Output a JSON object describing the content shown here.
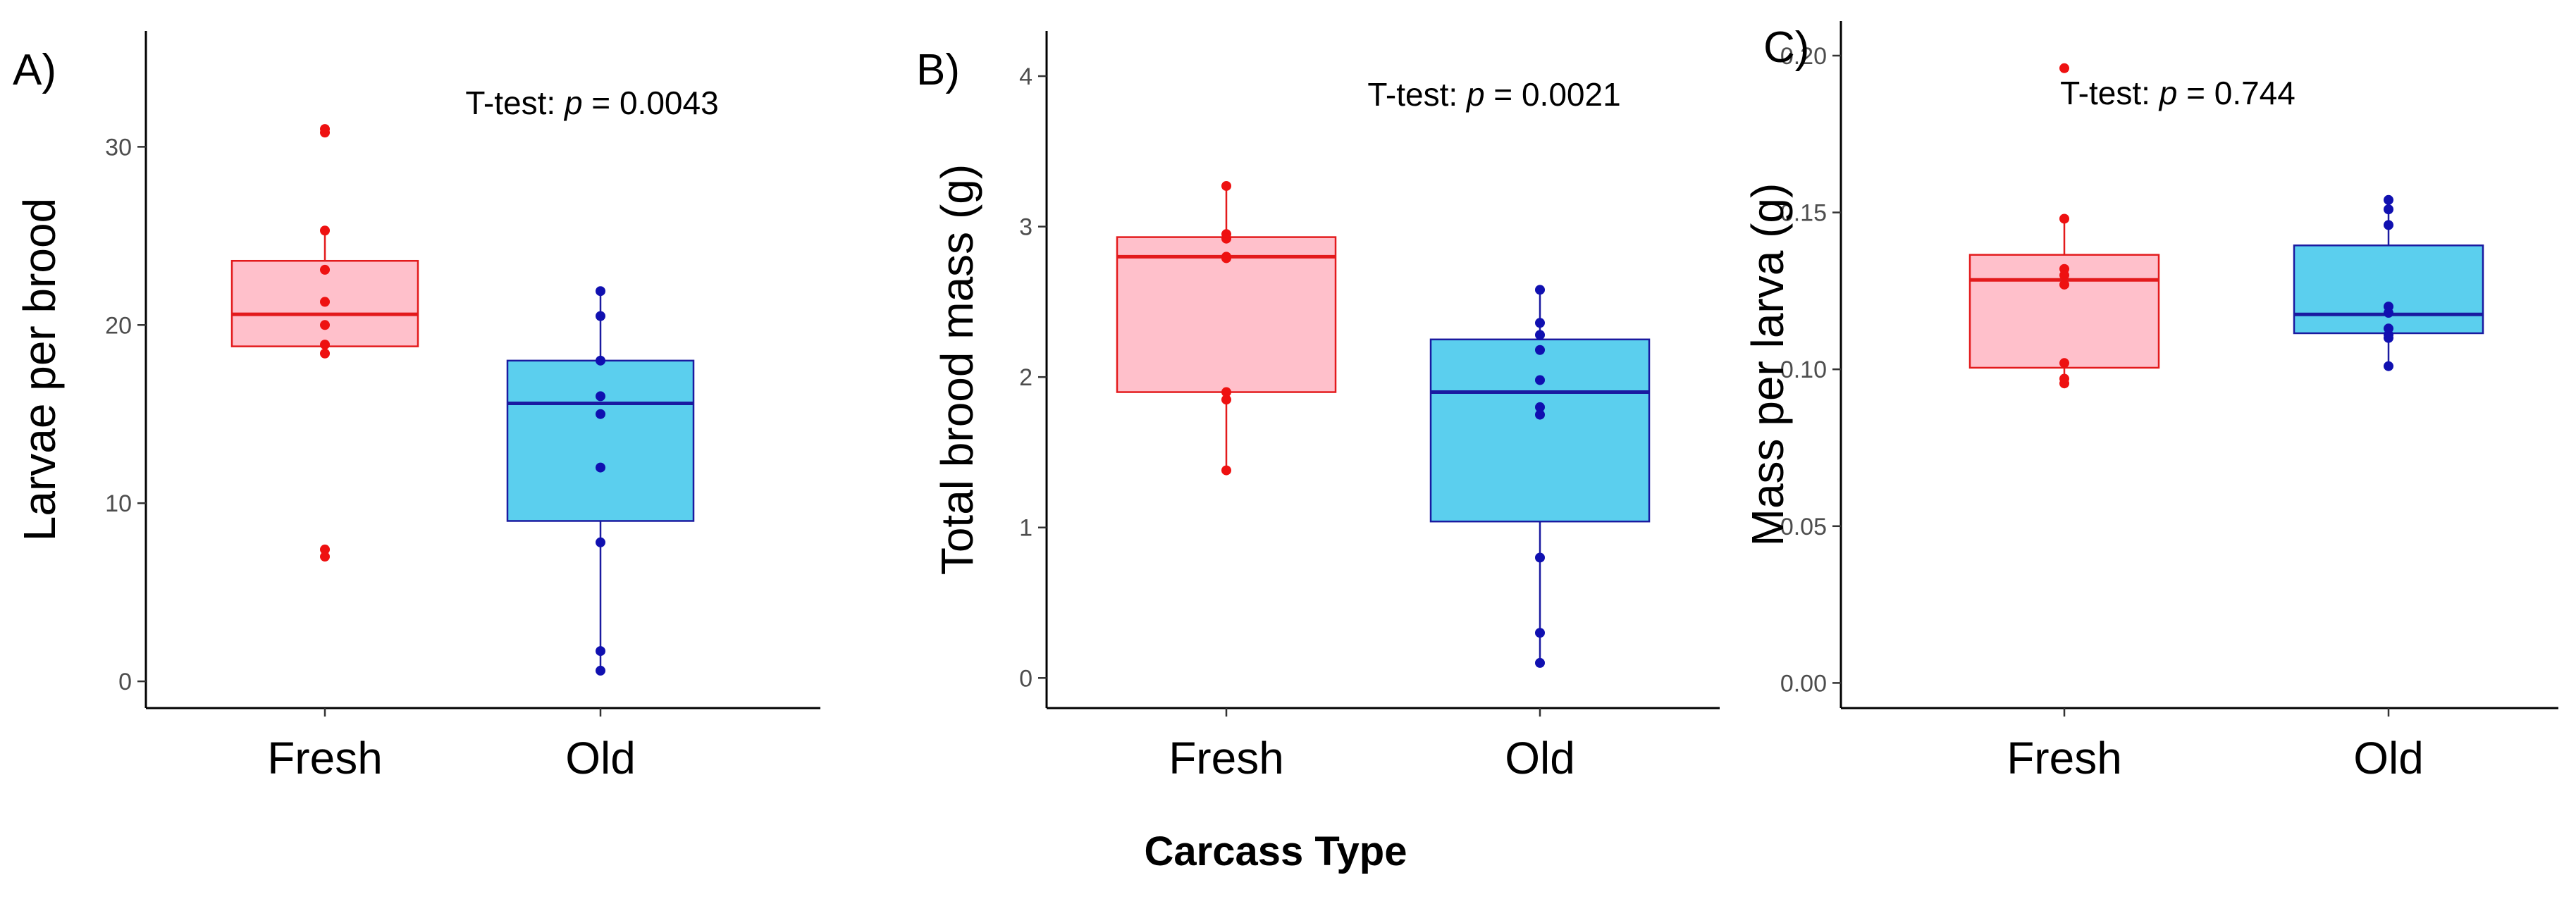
{
  "figure": {
    "xlabel": "Carcass Type"
  },
  "colors": {
    "fresh_fill": "#ffc0cb",
    "fresh_line": "#e31a1c",
    "fresh_point": "#ee1111",
    "old_fill": "#5bcfee",
    "old_line": "#1a1aa0",
    "old_point": "#1010b0"
  },
  "chart_data": [
    {
      "type": "box",
      "panel_label": "A)",
      "ylabel": "Larvae per brood",
      "ylim": [
        -1.5,
        36.5
      ],
      "yticks": [
        0,
        10,
        20,
        30
      ],
      "ytick_labels": [
        "0",
        "10",
        "20",
        "30"
      ],
      "annotation_prefix": "T-test: ",
      "annotation_p": "p",
      "annotation_value": " = 0.0043",
      "categories": [
        "Fresh",
        "Old"
      ],
      "boxes": [
        {
          "name": "Fresh",
          "q1": 18.8,
          "median": 20.6,
          "q3": 23.6,
          "whisker_low": 18.5,
          "whisker_high": 25.3,
          "points": [
            31,
            30.8,
            25.3,
            23.1,
            21.3,
            20.0,
            18.9,
            18.4,
            7.4,
            7.0
          ]
        },
        {
          "name": "Old",
          "q1": 9.0,
          "median": 15.6,
          "q3": 18.0,
          "whisker_low": 0.6,
          "whisker_high": 21.9,
          "points": [
            21.9,
            20.5,
            18.0,
            16.0,
            15.0,
            12.0,
            7.8,
            1.7,
            0.6
          ]
        }
      ]
    },
    {
      "type": "box",
      "panel_label": "B)",
      "ylabel": "Total brood mass (g)",
      "ylim": [
        -0.2,
        4.3
      ],
      "yticks": [
        0,
        1,
        2,
        3,
        4
      ],
      "ytick_labels": [
        "0",
        "1",
        "2",
        "3",
        "4"
      ],
      "annotation_prefix": "T-test: ",
      "annotation_p": "p",
      "annotation_value": " = 0.0021",
      "categories": [
        "Fresh",
        "Old"
      ],
      "boxes": [
        {
          "name": "Fresh",
          "q1": 1.9,
          "median": 2.8,
          "q3": 2.93,
          "whisker_low": 1.38,
          "whisker_high": 3.27,
          "points": [
            3.27,
            2.95,
            2.92,
            2.8,
            2.79,
            1.9,
            1.85,
            1.38
          ]
        },
        {
          "name": "Old",
          "q1": 1.04,
          "median": 1.9,
          "q3": 2.25,
          "whisker_low": 0.1,
          "whisker_high": 2.58,
          "points": [
            2.58,
            2.36,
            2.28,
            2.18,
            1.98,
            1.8,
            1.75,
            0.8,
            0.3,
            0.1
          ]
        }
      ]
    },
    {
      "type": "box",
      "panel_label": "C)",
      "ylabel": "Mass per larva (g)",
      "ylim": [
        -0.008,
        0.211
      ],
      "yticks": [
        0,
        0.05,
        0.1,
        0.15,
        0.2
      ],
      "ytick_labels": [
        "0.00",
        "0.05",
        "0.10",
        "0.15",
        "0.20"
      ],
      "annotation_prefix": "T-test: ",
      "annotation_p": "p",
      "annotation_value": " = 0.744",
      "categories": [
        "Fresh",
        "Old"
      ],
      "boxes": [
        {
          "name": "Fresh",
          "q1": 0.1005,
          "median": 0.1285,
          "q3": 0.1365,
          "whisker_low": 0.0955,
          "whisker_high": 0.148,
          "points": [
            0.196,
            0.148,
            0.132,
            0.13,
            0.127,
            0.102,
            0.097,
            0.0955
          ]
        },
        {
          "name": "Old",
          "q1": 0.1115,
          "median": 0.1175,
          "q3": 0.1395,
          "whisker_low": 0.101,
          "whisker_high": 0.154,
          "points": [
            0.154,
            0.151,
            0.146,
            0.12,
            0.118,
            0.113,
            0.111,
            0.11,
            0.101
          ]
        }
      ]
    }
  ]
}
